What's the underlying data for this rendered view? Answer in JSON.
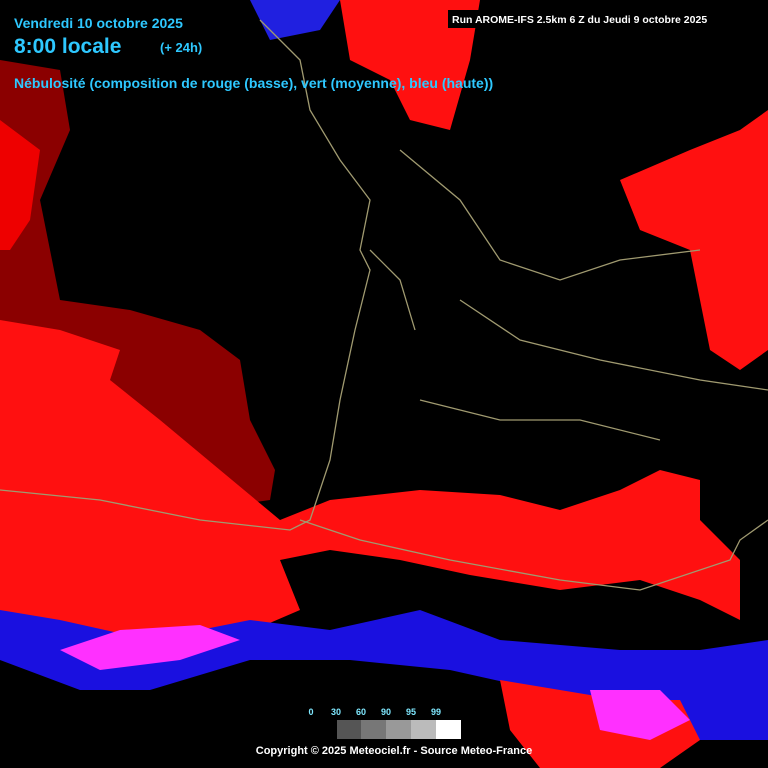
{
  "header": {
    "date": "Vendredi 10 octobre 2025",
    "time": "8:00 locale",
    "lead": "(+ 24h)",
    "parameter": "Nébulosité (composition de rouge (basse), vert (moyenne), bleu (haute))",
    "run": "Run AROME-IFS 2.5km 6 Z du Jeudi 9 octobre 2025"
  },
  "legend": {
    "ticks": [
      0,
      30,
      60,
      90,
      95,
      99
    ]
  },
  "footer": {
    "copyright": "Copyright © 2025 Meteociel.fr - Source Meteo-France"
  }
}
